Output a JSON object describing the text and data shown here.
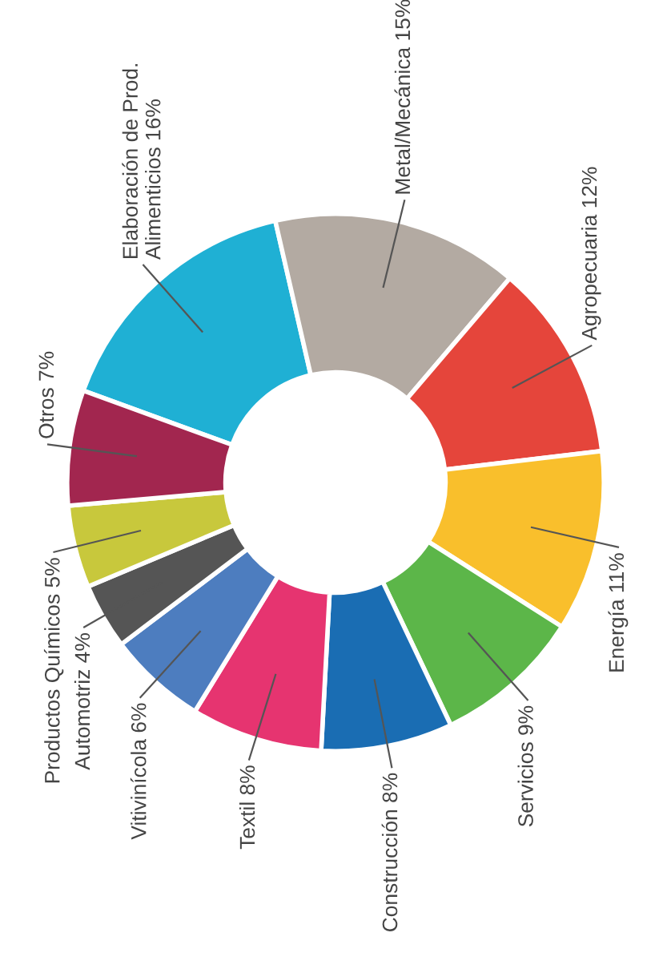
{
  "chart_data": {
    "type": "donut",
    "categories": [
      "Elaboración de Prod.\nAlimenticios",
      "Metal/Mecánica",
      "Agropecuaria",
      "Energía",
      "Servicios",
      "Construcción",
      "Textil",
      "Vitivinícola",
      "Automotriz",
      "Productos Químicos",
      "Otros"
    ],
    "values": [
      16,
      15,
      12,
      11,
      9,
      8,
      8,
      6,
      4,
      5,
      7
    ],
    "value_labels": [
      "16%",
      "15%",
      "12%",
      "11%",
      "9%",
      "8%",
      "8%",
      "6%",
      "4%",
      "5%",
      "7%"
    ],
    "colors": [
      "#1fb0d4",
      "#b3aaa2",
      "#e5453b",
      "#f9bf2c",
      "#5cb649",
      "#1a6db3",
      "#e63470",
      "#4d7dbf",
      "#555555",
      "#c8c83c",
      "#a2264f"
    ],
    "legend": false
  }
}
